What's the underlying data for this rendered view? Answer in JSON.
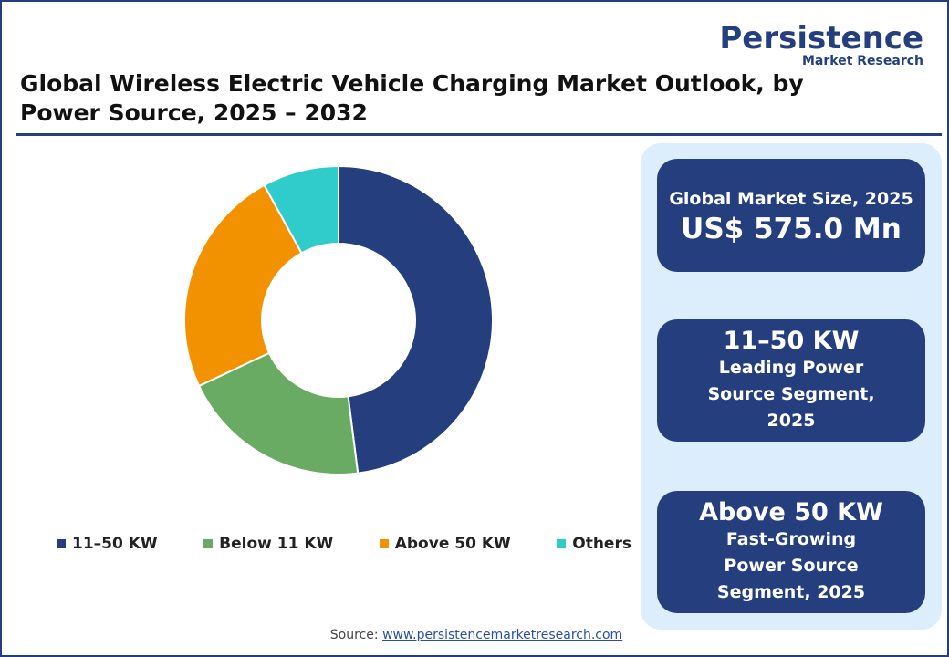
{
  "logo": {
    "name": "Persistence",
    "tagline": "Market Research"
  },
  "chart_data": {
    "type": "donut",
    "title": "Global Wireless Electric Vehicle Charging Market Outlook, by Power Source, 2025 – 2032",
    "categories": [
      "11–50 KW",
      "Below 11 KW",
      "Above 50 KW",
      "Others"
    ],
    "values": [
      48,
      20,
      24,
      8
    ],
    "colors": [
      "#253f7e",
      "#6aab63",
      "#f39200",
      "#30cccb"
    ],
    "legend": "bottom"
  },
  "cards": [
    {
      "label": "Global Market Size, 2025",
      "value": "US$ 575.0 Mn"
    },
    {
      "value": "11–50 KW",
      "label": "Leading Power Source Segment, 2025"
    },
    {
      "value": "Above 50 KW",
      "label": "Fast-Growing Power Source Segment, 2025"
    }
  ],
  "source": {
    "prefix": "Source:",
    "link": "www.persistencemarketresearch.com"
  }
}
